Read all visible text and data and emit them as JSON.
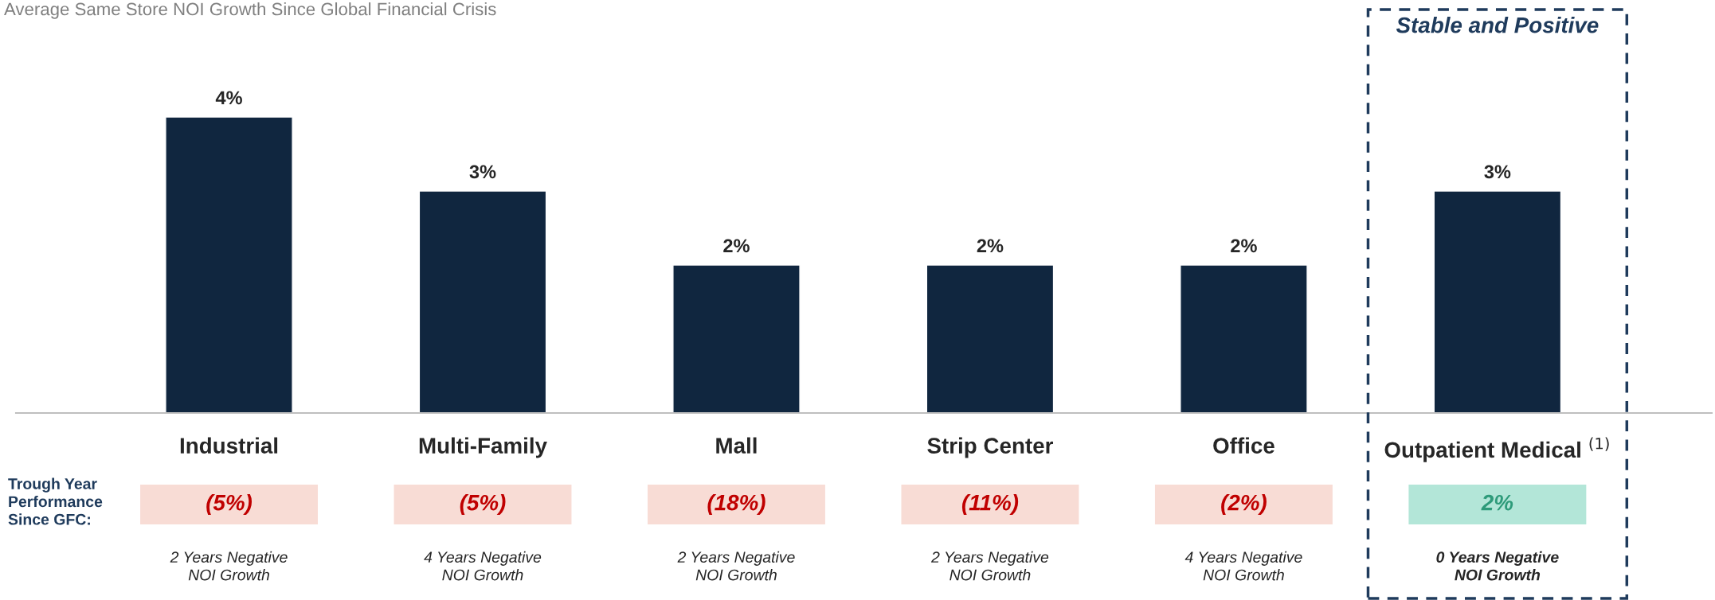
{
  "chart_data": {
    "type": "bar",
    "title": "Average Same Store NOI Growth Since Global Financial Crisis",
    "categories": [
      "Industrial",
      "Multi-Family",
      "Mall",
      "Strip Center",
      "Office",
      "Outpatient Medical $^{(1)}$"
    ],
    "color": "#10263f",
    "values": [
      4,
      3,
      2,
      2,
      2,
      3
    ],
    "value_labels": [
      "4%",
      "3%",
      "2%",
      "2%",
      "2%",
      "3%"
    ],
    "annotations": [
      "Trough Year Performance Since GFC:",
      "(5%)",
      "(5%)",
      "(18%)",
      "(11%)",
      "(2%)",
      "2%",
      "2 Years Negative\nNOI Growth",
      "4 Years Negative\nNOI Growth",
      "2 Years Negative\nNOI Growth",
      "2 Years Negative\nNOI Growth",
      "4 Years Negative\nNOI Growth",
      "0 Years Negative\nNOI Growth",
      "Stable and Positive"
    ]
  }
}
